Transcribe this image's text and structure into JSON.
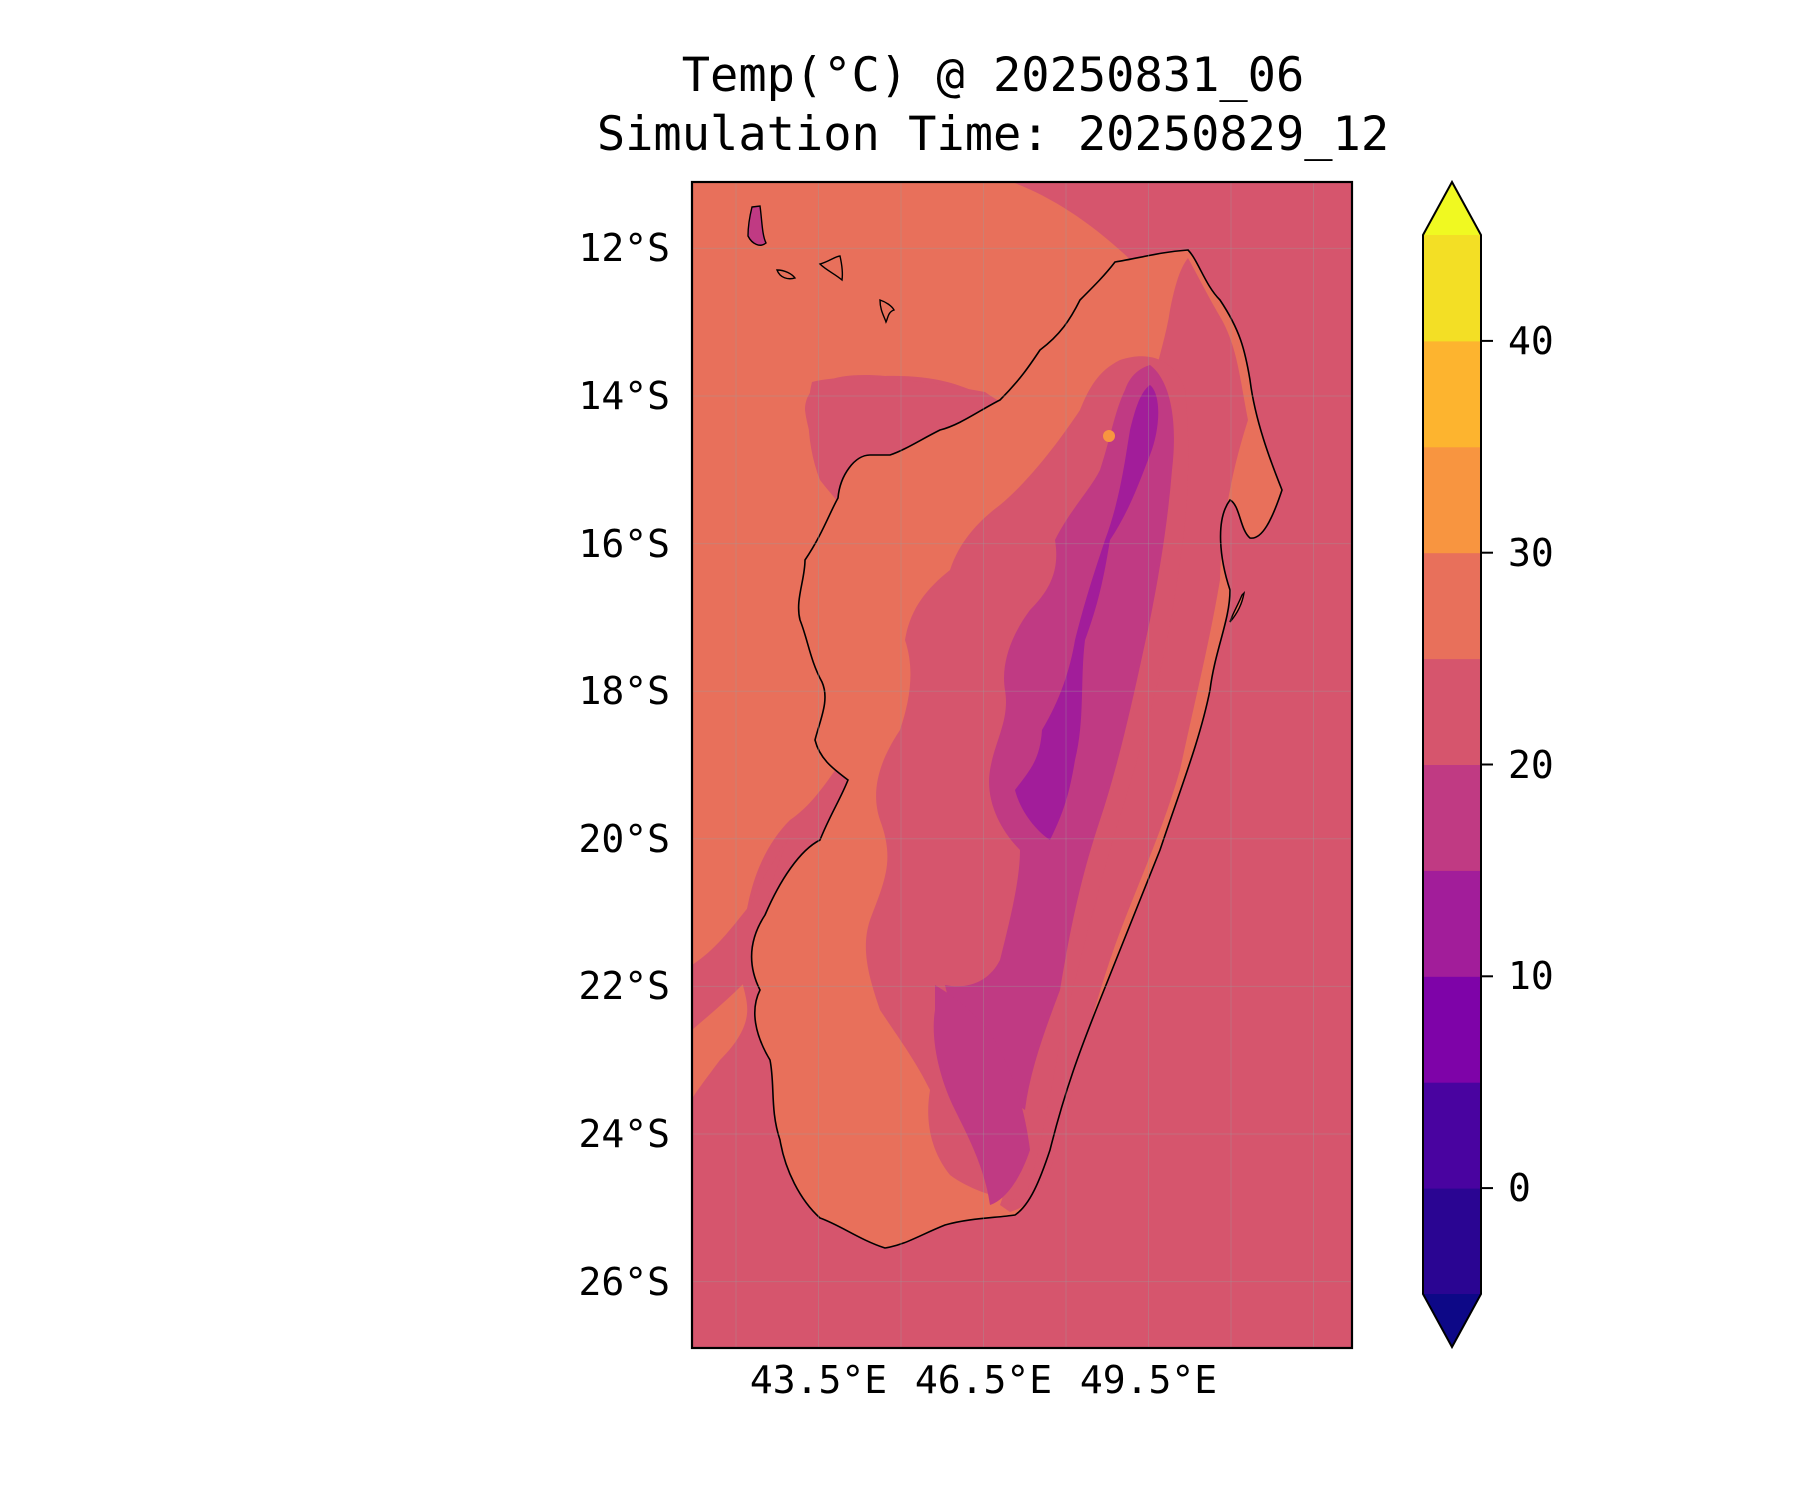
{
  "figure": {
    "title_line1": "Temp(°C) @ 20250831_06",
    "title_line2": "Simulation Time: 20250829_12"
  },
  "map": {
    "lon_range": [
      41.2,
      53.2
    ],
    "lat_range": [
      -26.9,
      -11.1
    ],
    "y_ticks": [
      {
        "lat": -12,
        "label": "12°S"
      },
      {
        "lat": -14,
        "label": "14°S"
      },
      {
        "lat": -16,
        "label": "16°S"
      },
      {
        "lat": -18,
        "label": "18°S"
      },
      {
        "lat": -20,
        "label": "20°S"
      },
      {
        "lat": -22,
        "label": "22°S"
      },
      {
        "lat": -24,
        "label": "24°S"
      },
      {
        "lat": -26,
        "label": "26°S"
      }
    ],
    "x_ticks": [
      {
        "lon": 43.5,
        "label": "43.5°E"
      },
      {
        "lon": 46.5,
        "label": "46.5°E"
      },
      {
        "lon": 49.5,
        "label": "49.5°E"
      }
    ],
    "gridlines": true,
    "coastline_color": "#000000",
    "ocean_background_value": 22
  },
  "colorbar": {
    "label": "",
    "colormap": "plasma",
    "extend": "both",
    "levels": [
      -5,
      0,
      5,
      10,
      15,
      20,
      25,
      30,
      35,
      40,
      45
    ],
    "band_colors": [
      "#2a0592",
      "#4903a0",
      "#7e03a8",
      "#a21d9a",
      "#c03a83",
      "#d6556d",
      "#e8705b",
      "#f89540",
      "#fdb42f",
      "#f3df25"
    ],
    "under_color": "#0d0887",
    "over_color": "#f0f921",
    "ticks": [
      {
        "value": 0,
        "label": "0"
      },
      {
        "value": 10,
        "label": "10"
      },
      {
        "value": 20,
        "label": "20"
      },
      {
        "value": 30,
        "label": "30"
      },
      {
        "value": 40,
        "label": "40"
      }
    ]
  }
}
